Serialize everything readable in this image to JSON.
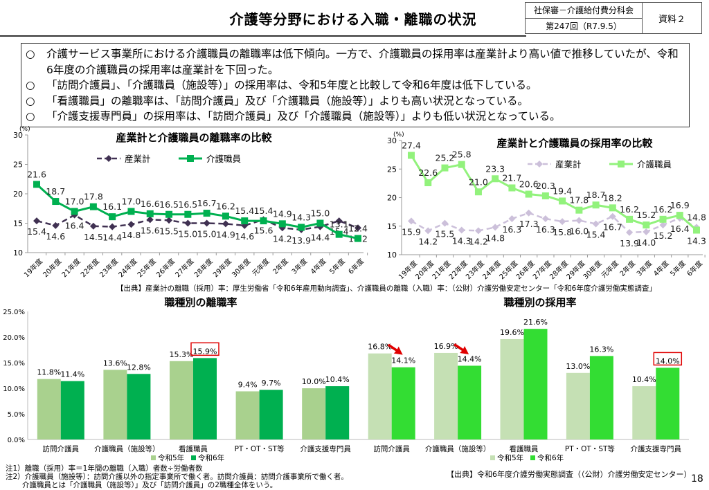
{
  "header": {
    "title": "介護等分野における入職・離職の状況",
    "committee": "社保審－介護給付費分科会",
    "session": "第247回（R7.9.5）",
    "doc_label": "資料２"
  },
  "summary": {
    "bullet": "○",
    "items": [
      "介護サービス事業所における介護職員の離職率は低下傾向。一方で、介護職員の採用率は産業計より高い値で推移していたが、令和6年度の介護職員の採用率は産業計を下回った。",
      "「訪問介護員」、「介護職員（施設等）」の採用率は、令和5年度と比較して令和6年度は低下している。",
      "「看護職員」の離職率は、「訪問介護員」及び「介護職員（施設等）」よりも高い状況となっている。",
      "「介護支援専門員」の採用率は、「訪問介護員」及び「介護職員（施設等）」よりも低い状況となっている。"
    ]
  },
  "line_source": "【出典】産業計の離職（採用）率：厚生労働省「令和6年雇用動向調査」、介護職員の離職（入職）率：（公財）介護労働安定センター「令和6年度介護労働実態調査」",
  "notes": [
    "注1）離職（採用）率＝1年間の離職（入職）者数÷労働者数",
    "注2）介護職員（施設等）：訪問介護以外の指定事業所で働く者。訪問介護員：訪問介護事業所で働く者。",
    "介護職員とは「介護職員（施設等）」及び「訪問介護員」の2職種全体をいう。"
  ],
  "bar_source": "【出典】令和6年度介護労働実態調査（（公財）介護労働安定センター）",
  "page_number": "18",
  "chart_data": [
    {
      "type": "line",
      "title": "産業計と介護職員の離職率の比較",
      "ylabel": "(%)",
      "ylim": [
        10,
        30
      ],
      "yticks": [
        "10",
        "15",
        "20",
        "25",
        "30"
      ],
      "categories": [
        "19年度",
        "20年度",
        "21年度",
        "22年度",
        "23年度",
        "24年度",
        "25年度",
        "26年度",
        "27年度",
        "28年度",
        "29年度",
        "30年度",
        "元年度",
        "2年度",
        "3年度",
        "4年度",
        "5年度",
        "6年度"
      ],
      "legend": "top",
      "series": [
        {
          "name": "産業計",
          "style": "dashed-diamond",
          "color": "#403152",
          "values": [
            15.4,
            14.6,
            16.4,
            14.5,
            14.4,
            14.8,
            15.6,
            15.5,
            15.0,
            15.0,
            14.9,
            14.6,
            15.6,
            14.2,
            13.9,
            14.4,
            15.4,
            14.2
          ]
        },
        {
          "name": "介護職員",
          "style": "solid-square",
          "color": "#00b050",
          "values": [
            21.6,
            18.7,
            17.0,
            17.8,
            16.1,
            17.0,
            16.6,
            16.5,
            16.5,
            16.7,
            16.2,
            15.4,
            15.4,
            14.9,
            14.3,
            15.0,
            13.1,
            12.4
          ]
        }
      ]
    },
    {
      "type": "line",
      "title": "産業計と介護職員の採用率の比較",
      "ylabel": "(%)",
      "ylim": [
        10,
        30
      ],
      "yticks": [
        "10",
        "15",
        "20",
        "25",
        "30"
      ],
      "categories": [
        "19年度",
        "20年度",
        "21年度",
        "22年度",
        "23年度",
        "24年度",
        "25年度",
        "26年度",
        "27年度",
        "28年度",
        "29年度",
        "30年度",
        "元年度",
        "2年度",
        "3年度",
        "4年度",
        "5年度",
        "6年度"
      ],
      "legend": "top-right",
      "series": [
        {
          "name": "産業計",
          "style": "dashed-diamond",
          "color": "#ccc0da",
          "values": [
            15.9,
            14.2,
            15.5,
            14.3,
            14.2,
            14.8,
            16.3,
            17.3,
            16.3,
            15.8,
            16.0,
            15.4,
            16.7,
            13.9,
            14.0,
            15.2,
            16.4,
            14.8
          ]
        },
        {
          "name": "介護職員",
          "style": "solid-square",
          "color": "#92f27c",
          "values": [
            27.4,
            22.6,
            25.2,
            25.8,
            21.0,
            23.3,
            21.7,
            20.6,
            20.3,
            19.4,
            17.8,
            18.7,
            18.2,
            16.2,
            15.2,
            16.2,
            16.9,
            14.3
          ]
        }
      ]
    },
    {
      "type": "bar",
      "title": "職種別の離職率",
      "ylim": [
        0,
        25
      ],
      "yticks": [
        "0.0%",
        "5.0%",
        "10.0%",
        "15.0%",
        "20.0%",
        "25.0%"
      ],
      "categories": [
        "訪問介護員",
        "介護職員（施設等）",
        "看護職員",
        "PT・OT・ST等",
        "介護支援専門員"
      ],
      "legend": "bottom",
      "series": [
        {
          "name": "令和5年",
          "color": "#a9d18e",
          "values": [
            11.8,
            13.6,
            15.3,
            9.4,
            10.0
          ],
          "labels": [
            "11.8%",
            "13.6%",
            "15.3%",
            "9.4%",
            "10.0%"
          ]
        },
        {
          "name": "令和6年",
          "color": "#00b050",
          "values": [
            11.4,
            12.8,
            15.9,
            9.7,
            10.4
          ],
          "labels": [
            "11.4%",
            "12.8%",
            "15.9%",
            "9.7%",
            "10.4%"
          ]
        }
      ],
      "highlighted": [
        {
          "series": 1,
          "index": 2,
          "color": "#e00000"
        }
      ]
    },
    {
      "type": "bar",
      "title": "職種別の採用率",
      "ylim": [
        0,
        25
      ],
      "categories": [
        "訪問介護員",
        "介護職員（施設等）",
        "看護職員",
        "PT・OT・ST等",
        "介護支援専門員"
      ],
      "legend": "bottom",
      "series": [
        {
          "name": "令和5年",
          "color": "#c5e0b4",
          "values": [
            16.8,
            16.9,
            19.6,
            13.0,
            10.4
          ],
          "labels": [
            "16.8%",
            "16.9%",
            "19.6%",
            "13.0%",
            "10.4%"
          ]
        },
        {
          "name": "令和6年",
          "color": "#33dd33",
          "values": [
            14.1,
            14.4,
            21.6,
            16.3,
            14.0
          ],
          "labels": [
            "14.1%",
            "14.4%",
            "21.6%",
            "16.3%",
            "14.0%"
          ]
        }
      ],
      "highlighted": [
        {
          "series": 1,
          "index": 4,
          "color": "#e00000"
        }
      ],
      "decrease_arrows": [
        0,
        1
      ],
      "arrow_color": "#e00000"
    }
  ]
}
